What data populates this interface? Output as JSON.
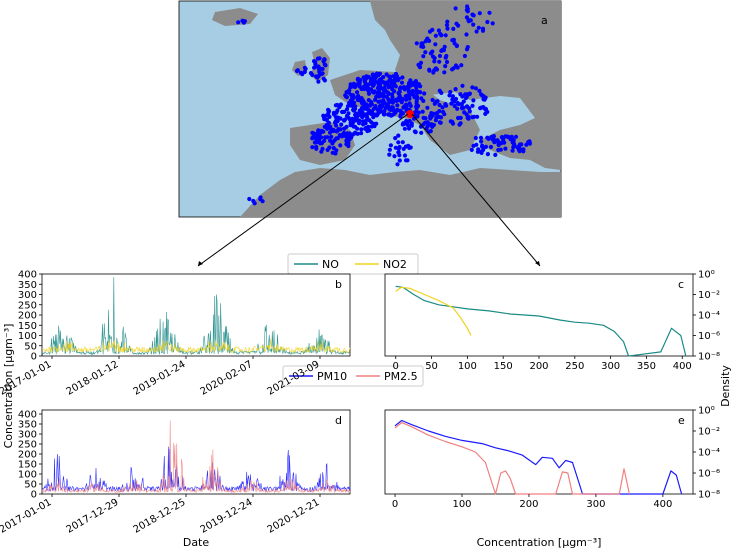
{
  "panels": {
    "a": "a",
    "b": "b",
    "c": "c",
    "d": "d",
    "e": "e"
  },
  "legend_top": {
    "items": [
      "NO",
      "NO2"
    ]
  },
  "legend_bottom": {
    "items": [
      "PM10",
      "PM2.5"
    ]
  },
  "labels": {
    "concentration_y": "Concentration [μgm⁻³]",
    "date_x": "Date",
    "density_y": "Density",
    "concentration_x": "Concentration [μgm⁻³]"
  },
  "colors": {
    "ocean": "#a6cde3",
    "land": "#8c8c8c",
    "stations": "#0000ff",
    "highlight": "#ff0000",
    "NO": "#1a8a86",
    "NO2": "#f1d21a",
    "PM10": "#1a1aff",
    "PM2.5": "#f08080"
  },
  "chart_data": [
    {
      "panel": "a",
      "type": "scatter",
      "description_shown": "map of Europe with monitoring stations",
      "highlight_station": "red dot in northern Italy"
    },
    {
      "panel": "b",
      "type": "line",
      "x_ticks": [
        "2017-01-01",
        "2018-01-12",
        "2019-01-24",
        "2020-02-07",
        "2021-03-09"
      ],
      "y_ticks": [
        0,
        50,
        100,
        150,
        200,
        250,
        300,
        350,
        400
      ],
      "ylim": [
        0,
        400
      ],
      "series": [
        {
          "name": "NO",
          "peaks": [
            190,
            385,
            215,
            300,
            195,
            130
          ],
          "baseline": 15
        },
        {
          "name": "NO2",
          "peaks": [
            80,
            90,
            80,
            80,
            75,
            70
          ],
          "baseline": 30
        }
      ]
    },
    {
      "panel": "c",
      "type": "line",
      "xlim": [
        -15,
        415
      ],
      "x_ticks": [
        0,
        50,
        100,
        150,
        200,
        250,
        300,
        350,
        400
      ],
      "y_log_ticks": [
        0,
        -2,
        -4,
        -6,
        -8
      ],
      "y_tick_labels": [
        "10⁰",
        "10⁻²",
        "10⁻⁴",
        "10⁻⁶",
        "10⁻⁸"
      ],
      "series": [
        {
          "name": "NO",
          "x": [
            0,
            10,
            25,
            40,
            60,
            80,
            100,
            130,
            160,
            200,
            230,
            250,
            270,
            290,
            305,
            318,
            325,
            370,
            385,
            398,
            405
          ],
          "log_y": [
            -1.2,
            -1.3,
            -2.0,
            -2.6,
            -3.0,
            -3.2,
            -3.4,
            -3.6,
            -3.9,
            -4.1,
            -4.5,
            -4.7,
            -4.8,
            -5.0,
            -5.6,
            -6.6,
            -8.0,
            -7.6,
            -5.3,
            -6.0,
            -8.0
          ]
        },
        {
          "name": "NO2",
          "x": [
            0,
            8,
            20,
            40,
            60,
            80,
            90,
            100,
            105
          ],
          "log_y": [
            -1.7,
            -1.3,
            -1.4,
            -2.0,
            -2.6,
            -3.3,
            -4.2,
            -5.3,
            -6.0
          ]
        }
      ]
    },
    {
      "panel": "d",
      "type": "line",
      "x_ticks": [
        "2017-01-01",
        "2017-12-29",
        "2018-12-25",
        "2019-12-24",
        "2020-12-21"
      ],
      "y_ticks": [
        0,
        50,
        100,
        150,
        200,
        250,
        300,
        350,
        400
      ],
      "ylim": [
        0,
        420
      ],
      "series": [
        {
          "name": "PM10",
          "peaks": [
            200,
            130,
            150,
            420,
            190,
            140,
            220,
            150
          ],
          "baseline": 25
        },
        {
          "name": "PM2.5",
          "peaks": [
            90,
            70,
            80,
            410,
            240,
            80,
            90,
            70
          ],
          "baseline": 15
        }
      ]
    },
    {
      "panel": "e",
      "type": "line",
      "xlim": [
        -15,
        445
      ],
      "x_ticks": [
        0,
        100,
        200,
        300,
        400
      ],
      "y_log_ticks": [
        0,
        -2,
        -4,
        -6,
        -8
      ],
      "y_tick_labels": [
        "10⁰",
        "10⁻²",
        "10⁻⁴",
        "10⁻⁶",
        "10⁻⁸"
      ],
      "series": [
        {
          "name": "PM10",
          "x": [
            0,
            10,
            25,
            50,
            75,
            100,
            130,
            150,
            170,
            190,
            210,
            220,
            235,
            245,
            255,
            265,
            275,
            280,
            400,
            412,
            420,
            428
          ],
          "log_y": [
            -1.5,
            -1.0,
            -1.4,
            -2.0,
            -2.5,
            -2.9,
            -3.2,
            -3.6,
            -3.9,
            -4.3,
            -5.2,
            -4.5,
            -4.6,
            -5.5,
            -4.8,
            -5.0,
            -7.0,
            -8.0,
            -8.0,
            -5.8,
            -6.2,
            -8.0
          ]
        },
        {
          "name": "PM2.5",
          "x": [
            0,
            10,
            25,
            50,
            75,
            100,
            120,
            135,
            150,
            158,
            165,
            172,
            180,
            240,
            250,
            258,
            265,
            335,
            342,
            350
          ],
          "log_y": [
            -1.7,
            -1.2,
            -1.6,
            -2.4,
            -3.0,
            -3.5,
            -4.0,
            -5.0,
            -8.0,
            -6.0,
            -5.8,
            -6.5,
            -8.0,
            -8.0,
            -5.9,
            -6.0,
            -8.0,
            -8.0,
            -5.6,
            -8.0
          ]
        }
      ]
    }
  ]
}
